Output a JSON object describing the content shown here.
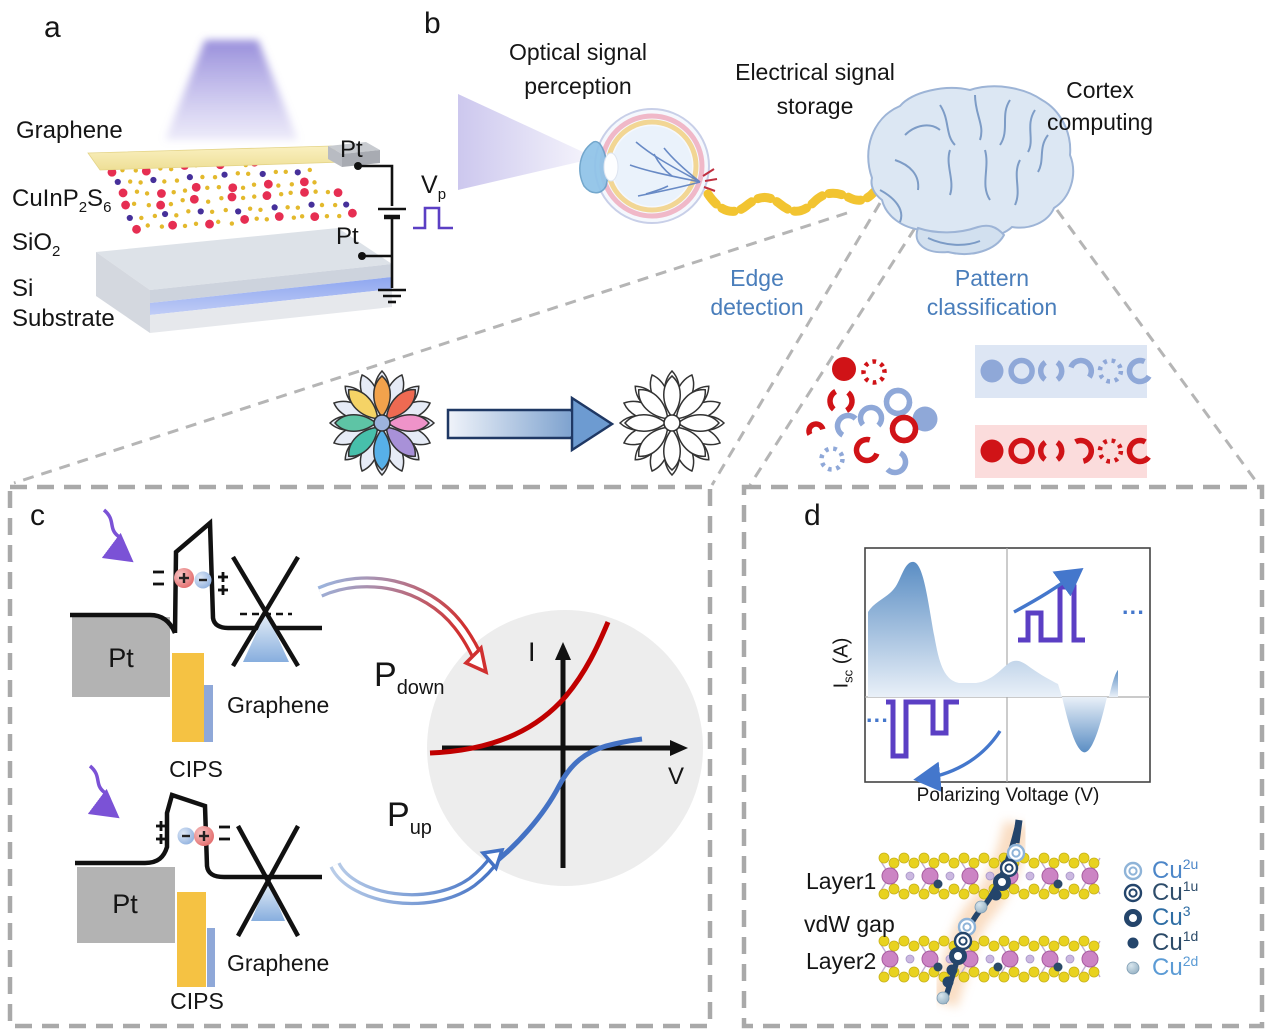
{
  "colors": {
    "task_label": "#4a7ebb",
    "pattern_red": "#d01317",
    "pattern_blue": "#8fa8d8",
    "pulse_purple": "#5b3fc4",
    "curve_red": "#c00000",
    "curve_blue": "#4472c4"
  },
  "panels": {
    "a": "a",
    "b": "b",
    "c": "c",
    "d": "d"
  },
  "panel_a": {
    "graphene": "Graphene",
    "cips_base1": "CuInP",
    "cips_sub1": "2",
    "cips_base2": "S",
    "cips_sub2": "6",
    "sio2_base": "SiO",
    "sio2_sub": "2",
    "si": "Si",
    "substrate": "Substrate",
    "pt_top": "Pt",
    "pt_bottom": "Pt",
    "vp_base": "V",
    "vp_sub": "p"
  },
  "panel_b": {
    "optical_line1": "Optical signal",
    "optical_line2": "perception",
    "electrical_line1": "Electrical signal",
    "electrical_line2": "storage",
    "cortex_line1": "Cortex",
    "cortex_line2": "computing",
    "edge_line1": "Edge",
    "edge_line2": "detection",
    "pattern_line1": "Pattern",
    "pattern_line2": "classification"
  },
  "panel_c": {
    "pt_top": "Pt",
    "pt_bottom": "Pt",
    "graphene_top": "Graphene",
    "graphene_bottom": "Graphene",
    "cips_top": "CIPS",
    "cips_bottom": "CIPS",
    "p_down_base": "P",
    "p_down_sub": "down",
    "p_up_base": "P",
    "p_up_sub": "up",
    "axis_i": "I",
    "axis_v": "V"
  },
  "panel_d": {
    "ylabel_base": "I",
    "ylabel_sub": "sc",
    "ylabel_unit": " (A)",
    "xlabel": "Polarizing Voltage (V)",
    "dots_left": "···",
    "dots_right": "···",
    "layer1": "Layer1",
    "vdw_gap": "vdW gap",
    "layer2": "Layer2",
    "legend": [
      {
        "base": "Cu",
        "sup": "2u",
        "color": "#4c86c8"
      },
      {
        "base": "Cu",
        "sup": "1u",
        "color": "#2e4d6b"
      },
      {
        "base": "Cu",
        "sup": "3",
        "color": "#2e6da4"
      },
      {
        "base": "Cu",
        "sup": "1d",
        "color": "#2b4a68"
      },
      {
        "base": "Cu",
        "sup": "2d",
        "color": "#5b9bd5"
      }
    ]
  }
}
